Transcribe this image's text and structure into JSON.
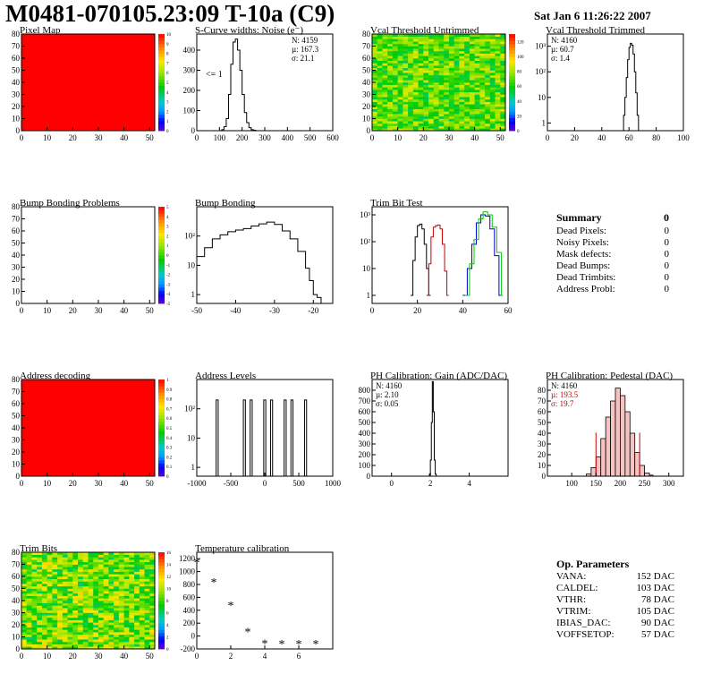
{
  "header": {
    "title": "M0481-070105.23:09 T-10a (C9)",
    "date": "Sat Jan  6 11:26:22 2007"
  },
  "chart_data": [
    {
      "type": "heatmap",
      "title": "Pixel Map",
      "xlim": [
        0,
        52
      ],
      "ylim": [
        0,
        80
      ],
      "xticks": [
        0,
        10,
        20,
        30,
        40,
        50
      ],
      "yticks": [
        0,
        10,
        20,
        30,
        40,
        50,
        60,
        70,
        80
      ],
      "value": 10,
      "palette_range": [
        0,
        10
      ],
      "palette_ticks": [
        0,
        1,
        2,
        3,
        4,
        5,
        6,
        7,
        8,
        9,
        10
      ]
    },
    {
      "type": "line",
      "title": "S-Curve widths: Noise (e⁻)",
      "xlim": [
        0,
        600
      ],
      "ylim": [
        0,
        480
      ],
      "xticks": [
        0,
        100,
        200,
        300,
        400,
        500,
        600
      ],
      "yticks": [
        0,
        100,
        200,
        300,
        400
      ],
      "stats": [
        "N: 4159",
        "µ: 167.3",
        "σ: 21.1"
      ],
      "annotation": "<= 1",
      "x": [
        100,
        110,
        120,
        130,
        140,
        150,
        160,
        170,
        180,
        190,
        200,
        210,
        220,
        230,
        240,
        250,
        260
      ],
      "y": [
        0,
        5,
        20,
        60,
        180,
        330,
        440,
        455,
        400,
        300,
        180,
        90,
        40,
        15,
        5,
        2,
        0
      ]
    },
    {
      "type": "heatmap",
      "title": "Vcal Threshold Untrimmed",
      "xlim": [
        0,
        52
      ],
      "ylim": [
        0,
        80
      ],
      "xticks": [
        0,
        10,
        20,
        30,
        40,
        50
      ],
      "yticks": [
        0,
        10,
        20,
        30,
        40,
        50,
        60,
        70,
        80
      ],
      "value_range": [
        50,
        90
      ],
      "palette_range": [
        0,
        130
      ],
      "palette_ticks": [
        0,
        20,
        40,
        60,
        80,
        100,
        120
      ]
    },
    {
      "type": "line",
      "title": "Vcal Threshold Trimmed",
      "xlim": [
        0,
        100
      ],
      "ylim": [
        0.5,
        3000
      ],
      "yscale": "log",
      "xticks": [
        0,
        20,
        40,
        60,
        80,
        100
      ],
      "yticks": [
        1,
        10,
        100,
        1000
      ],
      "ytick_labels": [
        "1",
        "10",
        "10²",
        "10³"
      ],
      "stats": [
        "N: 4160",
        "µ: 60.7",
        "σ:  1.4"
      ],
      "x": [
        55,
        56,
        57,
        58,
        59,
        60,
        61,
        62,
        63,
        64,
        65,
        66,
        67
      ],
      "y": [
        0.5,
        2,
        10,
        60,
        300,
        900,
        1300,
        1100,
        500,
        100,
        15,
        2,
        0.5
      ]
    },
    {
      "type": "heatmap",
      "title": "Bump Bonding Problems",
      "xlim": [
        0,
        52
      ],
      "ylim": [
        0,
        80
      ],
      "xticks": [
        0,
        10,
        20,
        30,
        40,
        50
      ],
      "yticks": [
        0,
        10,
        20,
        30,
        40,
        50,
        60,
        70,
        80
      ],
      "empty": true,
      "palette_range": [
        -5,
        5
      ],
      "palette_ticks": [
        -5,
        -4,
        -3,
        -2,
        -1,
        0,
        1,
        2,
        3,
        4,
        5
      ]
    },
    {
      "type": "line",
      "title": "Bump Bonding",
      "xlim": [
        -50,
        -15
      ],
      "ylim": [
        0.5,
        1000
      ],
      "yscale": "log",
      "xticks": [
        -50,
        -40,
        -30,
        -20
      ],
      "yticks": [
        1,
        10,
        100
      ],
      "ytick_labels": [
        "1",
        "10",
        "10²"
      ],
      "x": [
        -50,
        -48,
        -46,
        -44,
        -42,
        -40,
        -38,
        -36,
        -34,
        -32,
        -30,
        -28,
        -26,
        -24,
        -22,
        -21,
        -20,
        -19,
        -18
      ],
      "y": [
        20,
        40,
        80,
        110,
        140,
        160,
        180,
        220,
        260,
        300,
        250,
        150,
        80,
        30,
        8,
        3,
        1,
        0.8,
        0.5
      ]
    },
    {
      "type": "line",
      "title": "Trim Bit Test",
      "xlim": [
        0,
        60
      ],
      "ylim": [
        0.5,
        2000
      ],
      "yscale": "log",
      "xticks": [
        0,
        20,
        40,
        60
      ],
      "yticks": [
        1,
        10,
        100,
        1000
      ],
      "ytick_labels": [
        "1",
        "10",
        "10²",
        "10³"
      ],
      "series": [
        {
          "color": "#000000",
          "x": [
            17,
            18,
            19,
            20,
            21,
            22,
            23,
            24,
            25
          ],
          "y": [
            1,
            20,
            150,
            400,
            450,
            300,
            80,
            10,
            1
          ]
        },
        {
          "color": "#cc0000",
          "x": [
            24,
            25,
            26,
            27,
            28,
            29,
            30,
            31,
            32,
            33
          ],
          "y": [
            1,
            15,
            150,
            350,
            400,
            420,
            300,
            80,
            8,
            1
          ]
        },
        {
          "color": "#0000cc",
          "x": [
            40,
            42,
            44,
            46,
            48,
            50,
            52,
            54,
            56
          ],
          "y": [
            1,
            10,
            80,
            500,
            1000,
            900,
            300,
            30,
            1
          ]
        },
        {
          "color": "#00cc00",
          "x": [
            41,
            43,
            45,
            47,
            49,
            51,
            53,
            55,
            57
          ],
          "y": [
            1,
            15,
            120,
            700,
            1300,
            1000,
            350,
            40,
            1
          ]
        }
      ]
    },
    {
      "type": "table",
      "title": "Summary",
      "total": "0",
      "rows": [
        {
          "label": "Dead Pixels:",
          "value": "0"
        },
        {
          "label": "Noisy Pixels:",
          "value": "0"
        },
        {
          "label": "Mask defects:",
          "value": "0"
        },
        {
          "label": "Dead Bumps:",
          "value": "0"
        },
        {
          "label": "Dead Trimbits:",
          "value": "0"
        },
        {
          "label": "Address Probl:",
          "value": "0"
        }
      ]
    },
    {
      "type": "heatmap",
      "title": "Address decoding",
      "xlim": [
        0,
        52
      ],
      "ylim": [
        0,
        80
      ],
      "xticks": [
        0,
        10,
        20,
        30,
        40,
        50
      ],
      "yticks": [
        0,
        10,
        20,
        30,
        40,
        50,
        60,
        70,
        80
      ],
      "value": 1,
      "palette_range": [
        0,
        1
      ],
      "palette_ticks": [
        0,
        0.1,
        0.2,
        0.3,
        0.4,
        0.5,
        0.6,
        0.7,
        0.8,
        0.9,
        1
      ]
    },
    {
      "type": "line",
      "title": "Address Levels",
      "xlim": [
        -1000,
        1000
      ],
      "ylim": [
        0.5,
        1000
      ],
      "yscale": "log",
      "xticks": [
        -1000,
        -500,
        0,
        500,
        1000
      ],
      "yticks": [
        1,
        10,
        100
      ],
      "ytick_labels": [
        "1",
        "10",
        "10²"
      ],
      "peaks": [
        -700,
        -300,
        -200,
        0,
        100,
        300,
        400,
        600
      ],
      "peak_height": 200
    },
    {
      "type": "line",
      "title": "PH Calibration: Gain (ADC/DAC)",
      "xlim": [
        -1,
        6
      ],
      "ylim": [
        0,
        900
      ],
      "xticks": [
        0,
        2,
        4
      ],
      "yticks": [
        0,
        100,
        200,
        300,
        400,
        500,
        600,
        700,
        800
      ],
      "stats": [
        "N: 4160",
        "µ: 2.10",
        "σ: 0.05"
      ],
      "x": [
        1.9,
        1.95,
        2.0,
        2.05,
        2.1,
        2.15,
        2.2,
        2.25,
        2.3
      ],
      "y": [
        0,
        20,
        150,
        500,
        880,
        600,
        150,
        20,
        0
      ]
    },
    {
      "type": "bar",
      "title": "PH Calibration: Pedestal (DAC)",
      "xlim": [
        50,
        330
      ],
      "ylim": [
        0,
        90
      ],
      "xticks": [
        100,
        150,
        200,
        250,
        300
      ],
      "yticks": [
        0,
        10,
        20,
        30,
        40,
        50,
        60,
        70,
        80
      ],
      "stats": [
        "N: 4160",
        "µ: 193.5",
        "σ: 19.7"
      ],
      "cut_lines": [
        150,
        240
      ],
      "x": [
        130,
        140,
        150,
        160,
        170,
        180,
        190,
        200,
        210,
        220,
        230,
        240,
        250,
        260
      ],
      "values": [
        2,
        8,
        18,
        35,
        55,
        70,
        82,
        75,
        60,
        40,
        22,
        10,
        3,
        1
      ]
    },
    {
      "type": "heatmap",
      "title": "Trim Bits",
      "xlim": [
        0,
        52
      ],
      "ylim": [
        0,
        80
      ],
      "xticks": [
        0,
        10,
        20,
        30,
        40,
        50
      ],
      "yticks": [
        0,
        10,
        20,
        30,
        40,
        50,
        60,
        70,
        80
      ],
      "value_range": [
        6,
        12
      ],
      "palette_range": [
        0,
        16
      ],
      "palette_ticks": [
        0,
        2,
        4,
        6,
        8,
        10,
        12,
        14,
        16
      ]
    },
    {
      "type": "scatter",
      "title": "Temperature calibration",
      "xlim": [
        0,
        8
      ],
      "ylim": [
        -200,
        1300
      ],
      "xticks": [
        0,
        2,
        4,
        6
      ],
      "yticks": [
        -200,
        0,
        200,
        400,
        600,
        800,
        1000,
        1200
      ],
      "x": [
        0,
        1,
        2,
        3,
        4,
        5,
        6,
        7
      ],
      "y": [
        1150,
        840,
        480,
        70,
        -110,
        -115,
        -115,
        -115
      ]
    },
    {
      "type": "table",
      "title": "Op. Parameters",
      "rows": [
        {
          "label": "VANA:",
          "value": "152 DAC"
        },
        {
          "label": "CALDEL:",
          "value": "103 DAC"
        },
        {
          "label": "VTHR:",
          "value": "78 DAC"
        },
        {
          "label": "VTRIM:",
          "value": "105 DAC"
        },
        {
          "label": "IBIAS_DAC:",
          "value": "90 DAC"
        },
        {
          "label": "VOFFSETOP:",
          "value": "57 DAC"
        }
      ]
    }
  ]
}
